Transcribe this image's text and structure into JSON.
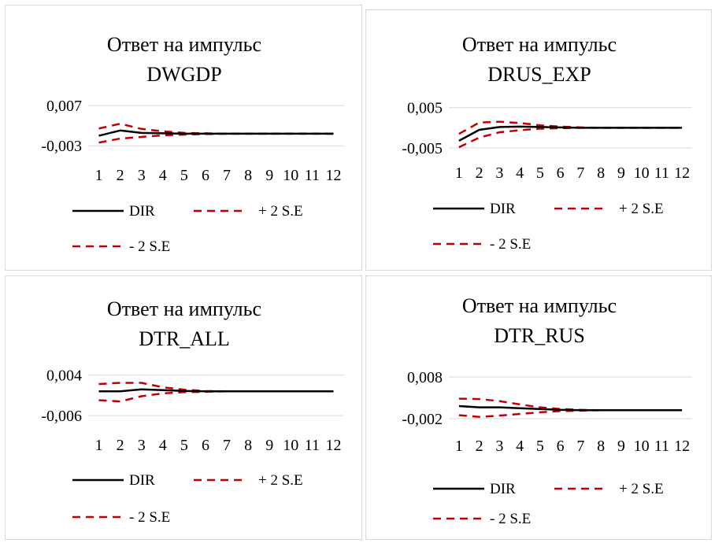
{
  "colors": {
    "dir": "#000000",
    "se": "#c00000",
    "grid": "#d9d9d9"
  },
  "chart_data": [
    {
      "type": "line",
      "title_line1": "Ответ на импульс",
      "title_line2": "DWGDP",
      "y_ticks": [
        {
          "value": 0.007,
          "label": "0,007"
        },
        {
          "value": -0.003,
          "label": "-0,003"
        }
      ],
      "ylim": [
        -0.0055,
        0.009
      ],
      "grid": true,
      "categories": [
        "1",
        "2",
        "3",
        "4",
        "5",
        "6",
        "7",
        "8",
        "9",
        "10",
        "11",
        "12"
      ],
      "legend": {
        "placement": "bottom",
        "labels": [
          "DIR",
          "+ 2 S.E",
          "- 2 S.E"
        ]
      },
      "series": [
        {
          "name": "DIR",
          "values": [
            -0.0005,
            0.0008,
            0.0002,
            0.0001,
            0.0,
            0.0,
            0.0,
            0.0,
            0.0,
            0.0,
            0.0,
            0.0
          ]
        },
        {
          "name": "+ 2 S.E",
          "values": [
            0.0013,
            0.0025,
            0.0012,
            0.0006,
            0.0002,
            0.0001,
            0.0,
            0.0,
            0.0,
            0.0,
            0.0,
            0.0
          ]
        },
        {
          "name": "- 2 S.E",
          "values": [
            -0.0022,
            -0.0012,
            -0.0008,
            -0.0004,
            -0.0002,
            -0.0001,
            0.0,
            0.0,
            0.0,
            0.0,
            0.0,
            0.0
          ]
        }
      ]
    },
    {
      "type": "line",
      "title_line1": "Ответ на импульс",
      "title_line2": "DRUS_EXP",
      "y_ticks": [
        {
          "value": 0.005,
          "label": "0,005"
        },
        {
          "value": -0.005,
          "label": "-0,005"
        }
      ],
      "ylim": [
        -0.0075,
        0.0065
      ],
      "grid": true,
      "categories": [
        "1",
        "2",
        "3",
        "4",
        "5",
        "6",
        "7",
        "8",
        "9",
        "10",
        "11",
        "12"
      ],
      "legend": {
        "placement": "bottom",
        "labels": [
          "DIR",
          "+ 2 S.E",
          "- 2 S.E"
        ]
      },
      "series": [
        {
          "name": "DIR",
          "values": [
            -0.0032,
            -0.0005,
            0.0002,
            0.0003,
            0.0002,
            0.0001,
            0.0,
            0.0,
            0.0,
            0.0,
            0.0,
            0.0
          ]
        },
        {
          "name": "+ 2 S.E",
          "values": [
            -0.0015,
            0.0013,
            0.0015,
            0.0012,
            0.0006,
            0.0003,
            0.0001,
            0.0,
            0.0,
            0.0,
            0.0,
            0.0
          ]
        },
        {
          "name": "- 2 S.E",
          "values": [
            -0.0048,
            -0.0024,
            -0.0011,
            -0.0006,
            -0.0002,
            -0.0001,
            0.0,
            0.0,
            0.0,
            0.0,
            0.0,
            0.0
          ]
        }
      ]
    },
    {
      "type": "line",
      "title_line1": "Ответ на импульс",
      "title_line2": "DTR_ALL",
      "y_ticks": [
        {
          "value": 0.004,
          "label": "0,004"
        },
        {
          "value": -0.006,
          "label": "-0,006"
        }
      ],
      "ylim": [
        -0.0085,
        0.0055
      ],
      "grid": true,
      "categories": [
        "1",
        "2",
        "3",
        "4",
        "5",
        "6",
        "7",
        "8",
        "9",
        "10",
        "11",
        "12"
      ],
      "legend": {
        "placement": "bottom",
        "labels": [
          "DIR",
          "+ 2 S.E",
          "- 2 S.E"
        ]
      },
      "series": [
        {
          "name": "DIR",
          "values": [
            0.0,
            0.0,
            0.0005,
            0.0003,
            0.0001,
            0.0,
            0.0,
            0.0,
            0.0,
            0.0,
            0.0,
            0.0
          ]
        },
        {
          "name": "+ 2 S.E",
          "values": [
            0.0018,
            0.0021,
            0.0021,
            0.001,
            0.0004,
            0.0001,
            0.0,
            0.0,
            0.0,
            0.0,
            0.0,
            0.0
          ]
        },
        {
          "name": "- 2 S.E",
          "values": [
            -0.0022,
            -0.0025,
            -0.0012,
            -0.0005,
            -0.0002,
            -0.0001,
            0.0,
            0.0,
            0.0,
            0.0,
            0.0,
            0.0
          ]
        }
      ]
    },
    {
      "type": "line",
      "title_line1": "Ответ на импульс",
      "title_line2": "DTR_RUS",
      "y_ticks": [
        {
          "value": 0.008,
          "label": "0,008"
        },
        {
          "value": -0.002,
          "label": "-0,002"
        }
      ],
      "ylim": [
        -0.0045,
        0.0105
      ],
      "grid": true,
      "categories": [
        "1",
        "2",
        "3",
        "4",
        "5",
        "6",
        "7",
        "8",
        "9",
        "10",
        "11",
        "12"
      ],
      "legend": {
        "placement": "bottom",
        "labels": [
          "DIR",
          "+ 2 S.E",
          "- 2 S.E"
        ]
      },
      "series": [
        {
          "name": "DIR",
          "values": [
            0.001,
            0.0007,
            0.0007,
            0.0005,
            0.0003,
            0.0001,
            0.0,
            0.0,
            0.0,
            0.0,
            0.0,
            0.0
          ]
        },
        {
          "name": "+ 2 S.E",
          "values": [
            0.0028,
            0.0027,
            0.0022,
            0.0014,
            0.0007,
            0.0003,
            0.0001,
            0.0,
            0.0,
            0.0,
            0.0,
            0.0
          ]
        },
        {
          "name": "- 2 S.E",
          "values": [
            -0.0012,
            -0.0016,
            -0.0013,
            -0.0009,
            -0.0005,
            -0.0002,
            -0.0001,
            0.0,
            0.0,
            0.0,
            0.0,
            0.0
          ]
        }
      ]
    }
  ]
}
